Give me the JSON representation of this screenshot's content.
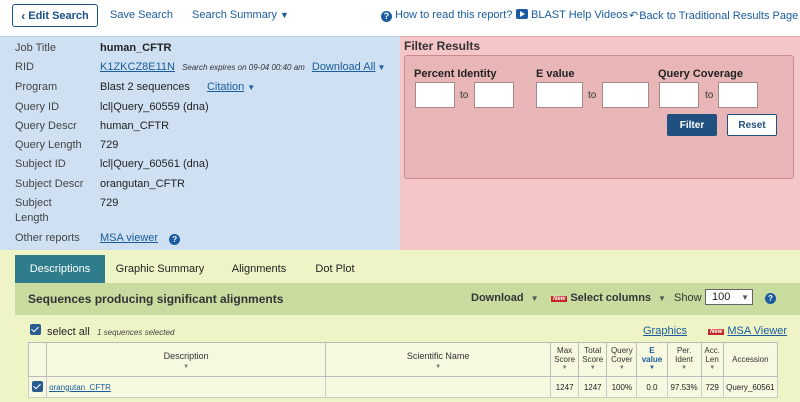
{
  "topbar": {
    "edit_search": "Edit Search",
    "save_search": "Save Search",
    "search_summary": "Search Summary",
    "how_to_read": "How to read this report?",
    "blast_help_videos": "BLAST Help Videos",
    "back_to_traditional": "Back to Traditional Results Page"
  },
  "info": {
    "job_title_label": "Job Title",
    "job_title": "human_CFTR",
    "rid_label": "RID",
    "rid": "K1ZKCZ8E11N",
    "rid_expiry": "Search expires on 09-04 00:40 am",
    "download_all": "Download All",
    "program_label": "Program",
    "program": "Blast 2 sequences",
    "citation": "Citation",
    "query_id_label": "Query ID",
    "query_id": "lcl|Query_60559 (dna)",
    "query_descr_label": "Query Descr",
    "query_descr": "human_CFTR",
    "query_length_label": "Query Length",
    "query_length": "729",
    "subject_id_label": "Subject ID",
    "subject_id": "lcl|Query_60561 (dna)",
    "subject_descr_label": "Subject Descr",
    "subject_descr": "orangutan_CFTR",
    "subject_length_label_1": "Subject",
    "subject_length_label_2": "Length",
    "subject_length": "729",
    "other_reports_label": "Other reports",
    "msa_viewer": "MSA viewer"
  },
  "filter": {
    "title": "Filter Results",
    "percent_identity": "Percent Identity",
    "e_value": "E value",
    "query_coverage": "Query Coverage",
    "to": "to",
    "filter_button": "Filter",
    "reset_button": "Reset"
  },
  "tabs": [
    "Descriptions",
    "Graphic Summary",
    "Alignments",
    "Dot Plot"
  ],
  "results": {
    "heading": "Sequences producing significant alignments",
    "download": "Download",
    "new_badge": "New",
    "select_columns": "Select columns",
    "show_label": "Show",
    "show_value": "100",
    "select_all": "select all",
    "selected_count": "1 sequences selected",
    "graphics": "Graphics",
    "msa_viewer": "MSA Viewer"
  },
  "table": {
    "headers": {
      "description": "Description",
      "scientific_name": "Scientific Name",
      "max_score_1": "Max",
      "max_score_2": "Score",
      "total_score_1": "Total",
      "total_score_2": "Score",
      "query_cover_1": "Query",
      "query_cover_2": "Cover",
      "e_value_1": "E",
      "e_value_2": "value",
      "per_ident_1": "Per.",
      "per_ident_2": "Ident",
      "acc_len_1": "Acc.",
      "acc_len_2": "Len",
      "accession": "Accession"
    },
    "rows": [
      {
        "description": "orangutan_CFTR",
        "scientific_name": "",
        "max_score": "1247",
        "total_score": "1247",
        "query_cover": "100%",
        "e_value": "0.0",
        "per_ident": "97.53%",
        "acc_len": "729",
        "accession": "Query_60561"
      }
    ]
  },
  "colors": {
    "info_bg": "#cfe0f2",
    "filter_bg": "#f5c6c8",
    "results_bg": "#eff4c6",
    "active_tab": "#2f7d8c",
    "link": "#1a5c9e"
  }
}
